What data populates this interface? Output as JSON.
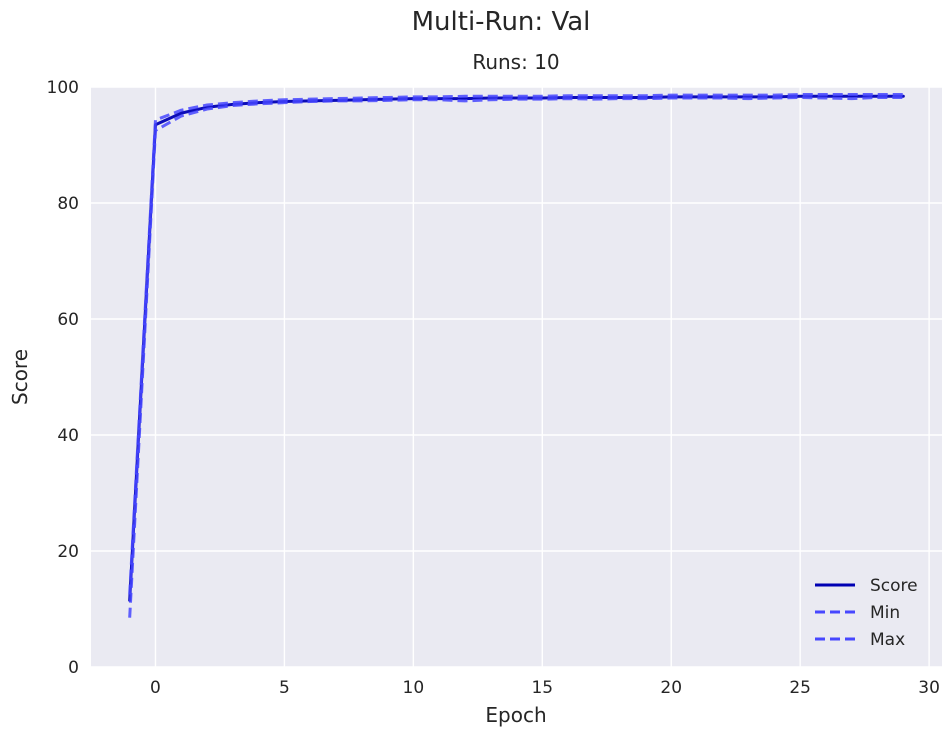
{
  "chart_data": {
    "type": "line",
    "title": "Multi-Run: Val",
    "subtitle": "Runs: 10",
    "xlabel": "Epoch",
    "ylabel": "Score",
    "xlim": [
      -2.5,
      30.5
    ],
    "ylim": [
      0,
      100
    ],
    "xticks": [
      0,
      5,
      10,
      15,
      20,
      25,
      30
    ],
    "yticks": [
      0,
      20,
      40,
      60,
      80,
      100
    ],
    "xtick_labels": [
      "0",
      "5",
      "10",
      "15",
      "20",
      "25",
      "30"
    ],
    "ytick_labels": [
      "0",
      "20",
      "40",
      "60",
      "80",
      "100"
    ],
    "grid": true,
    "legend_position": "bottom-right",
    "background_color": "#eaeaf2",
    "grid_color": "#ffffff",
    "x": [
      -1,
      0,
      1,
      2,
      3,
      4,
      5,
      6,
      7,
      8,
      9,
      10,
      11,
      12,
      13,
      14,
      15,
      16,
      17,
      18,
      19,
      20,
      21,
      22,
      23,
      24,
      25,
      26,
      27,
      28,
      29
    ],
    "series": [
      {
        "name": "Score",
        "style": "solid",
        "color": "#0000b3",
        "values": [
          11.5,
          93.5,
          95.5,
          96.5,
          97.0,
          97.3,
          97.5,
          97.6,
          97.7,
          97.8,
          97.9,
          98.0,
          98.0,
          98.0,
          98.1,
          98.1,
          98.1,
          98.2,
          98.2,
          98.2,
          98.2,
          98.3,
          98.3,
          98.3,
          98.3,
          98.3,
          98.4,
          98.4,
          98.4,
          98.4,
          98.4
        ]
      },
      {
        "name": "Min",
        "style": "dashed",
        "color": "#4747ff",
        "values": [
          8.5,
          92.5,
          95.0,
          96.2,
          96.8,
          97.1,
          97.3,
          97.5,
          97.6,
          97.6,
          97.7,
          97.8,
          97.8,
          97.6,
          97.8,
          97.9,
          97.9,
          98.0,
          97.9,
          98.0,
          98.0,
          98.1,
          98.1,
          98.1,
          98.0,
          98.1,
          98.2,
          98.1,
          98.0,
          98.2,
          98.2
        ]
      },
      {
        "name": "Max",
        "style": "dashed",
        "color": "#4747ff",
        "values": [
          12.5,
          94.3,
          96.0,
          96.9,
          97.3,
          97.6,
          97.8,
          97.9,
          98.0,
          98.1,
          98.2,
          98.3,
          98.3,
          98.4,
          98.4,
          98.4,
          98.4,
          98.5,
          98.5,
          98.5,
          98.5,
          98.6,
          98.6,
          98.6,
          98.6,
          98.6,
          98.7,
          98.7,
          98.7,
          98.7,
          98.7
        ]
      }
    ]
  }
}
